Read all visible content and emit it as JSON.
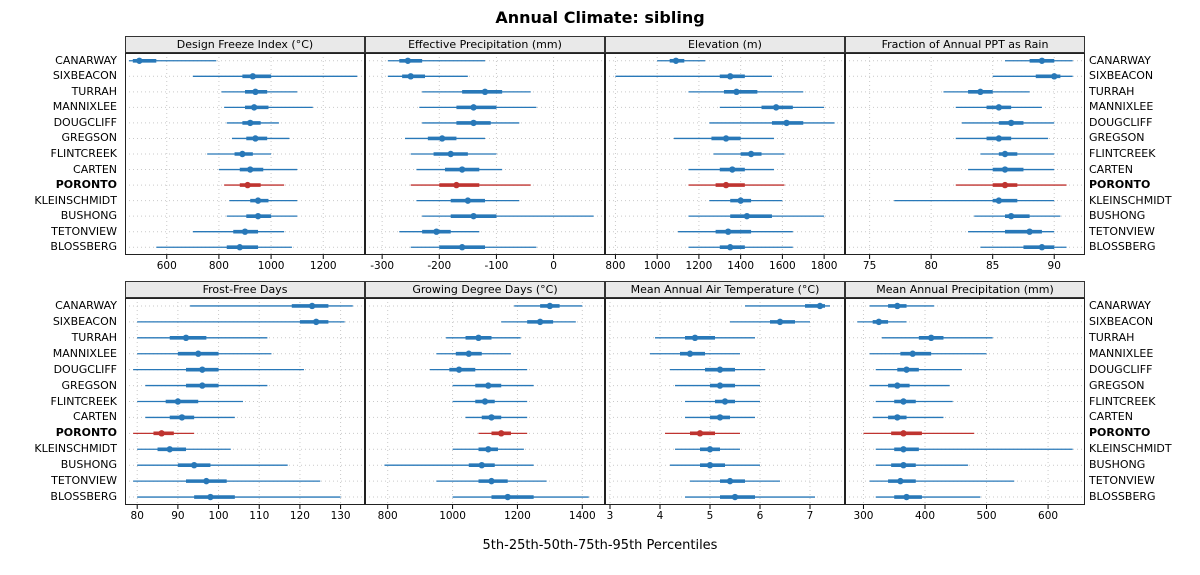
{
  "chart_data": {
    "type": "percentile-interval-dotplot",
    "title": "Annual Climate: sibling",
    "caption": "5th-25th-50th-75th-95th Percentiles",
    "legend_position": "none",
    "grid": "dotted",
    "stations": [
      "CANARWAY",
      "SIXBEACON",
      "TURRAH",
      "MANNIXLEE",
      "DOUGCLIFF",
      "GREGSON",
      "FLINTCREEK",
      "CARTEN",
      "PORONTO",
      "KLEINSCHMIDT",
      "BUSHONG",
      "TETONVIEW",
      "BLOSSBERG"
    ],
    "highlight_station": "PORONTO",
    "colors": {
      "normal": "#2878b8",
      "highlight": "#bf3430"
    },
    "percentiles": [
      5,
      25,
      50,
      75,
      95
    ],
    "panels": [
      {
        "title": "Design Freeze Index (°C)",
        "xlim": [
          440,
          1360
        ],
        "ticks": [
          600,
          800,
          1000,
          1200
        ],
        "values": [
          [
            455,
            470,
            495,
            560,
            790
          ],
          [
            700,
            890,
            930,
            1000,
            1330
          ],
          [
            810,
            900,
            940,
            985,
            1100
          ],
          [
            820,
            900,
            935,
            990,
            1160
          ],
          [
            830,
            890,
            920,
            960,
            1030
          ],
          [
            850,
            905,
            940,
            985,
            1070
          ],
          [
            755,
            860,
            890,
            930,
            1000
          ],
          [
            800,
            880,
            920,
            970,
            1100
          ],
          [
            820,
            880,
            910,
            960,
            1050
          ],
          [
            840,
            920,
            950,
            990,
            1100
          ],
          [
            830,
            905,
            950,
            1000,
            1100
          ],
          [
            700,
            855,
            900,
            950,
            1050
          ],
          [
            560,
            830,
            880,
            950,
            1080
          ]
        ]
      },
      {
        "title": "Effective Precipitation (mm)",
        "xlim": [
          -330,
          90
        ],
        "ticks": [
          -300,
          -200,
          -100,
          0
        ],
        "values": [
          [
            -290,
            -270,
            -255,
            -230,
            -120
          ],
          [
            -290,
            -265,
            -250,
            -225,
            -150
          ],
          [
            -230,
            -160,
            -120,
            -90,
            -40
          ],
          [
            -235,
            -170,
            -140,
            -100,
            -30
          ],
          [
            -230,
            -170,
            -140,
            -110,
            -60
          ],
          [
            -260,
            -220,
            -195,
            -170,
            -120
          ],
          [
            -250,
            -210,
            -180,
            -150,
            -100
          ],
          [
            -240,
            -190,
            -160,
            -130,
            -90
          ],
          [
            -250,
            -200,
            -170,
            -130,
            -40
          ],
          [
            -240,
            -180,
            -150,
            -120,
            -60
          ],
          [
            -230,
            -180,
            -140,
            -100,
            70
          ],
          [
            -270,
            -230,
            -205,
            -180,
            -130
          ],
          [
            -250,
            -200,
            -160,
            -120,
            -30
          ]
        ]
      },
      {
        "title": "Elevation (m)",
        "xlim": [
          750,
          1900
        ],
        "ticks": [
          800,
          1000,
          1200,
          1400,
          1600,
          1800
        ],
        "values": [
          [
            1000,
            1060,
            1090,
            1130,
            1230
          ],
          [
            800,
            1300,
            1350,
            1420,
            1550
          ],
          [
            1150,
            1320,
            1380,
            1480,
            1700
          ],
          [
            1300,
            1500,
            1570,
            1650,
            1800
          ],
          [
            1250,
            1550,
            1620,
            1700,
            1850
          ],
          [
            1080,
            1260,
            1330,
            1400,
            1560
          ],
          [
            1270,
            1400,
            1450,
            1500,
            1610
          ],
          [
            1150,
            1300,
            1360,
            1420,
            1560
          ],
          [
            1150,
            1280,
            1330,
            1420,
            1610
          ],
          [
            1250,
            1350,
            1400,
            1450,
            1600
          ],
          [
            1150,
            1350,
            1430,
            1550,
            1800
          ],
          [
            1100,
            1280,
            1340,
            1450,
            1650
          ],
          [
            1150,
            1300,
            1350,
            1420,
            1650
          ]
        ]
      },
      {
        "title": "Fraction of Annual PPT as Rain",
        "xlim": [
          73,
          92.5
        ],
        "ticks": [
          75,
          80,
          85,
          90
        ],
        "values": [
          [
            86,
            88,
            89,
            90,
            91.5
          ],
          [
            85,
            88.5,
            90,
            90.5,
            91.5
          ],
          [
            81,
            83,
            84,
            85,
            88
          ],
          [
            82,
            84.5,
            85.5,
            86.5,
            89
          ],
          [
            82.5,
            85.5,
            86.5,
            87.5,
            90
          ],
          [
            82,
            84.5,
            85.5,
            86.5,
            89.5
          ],
          [
            84,
            85.5,
            86,
            87,
            90
          ],
          [
            83,
            85,
            86,
            87.5,
            90
          ],
          [
            82,
            85,
            86,
            87,
            91
          ],
          [
            77,
            85,
            85.5,
            87,
            90
          ],
          [
            83.5,
            86,
            86.5,
            88,
            90.5
          ],
          [
            83,
            86,
            88,
            89,
            90
          ],
          [
            84,
            87.5,
            89,
            90,
            91
          ]
        ]
      },
      {
        "title": "Frost-Free Days",
        "xlim": [
          77,
          136
        ],
        "ticks": [
          80,
          90,
          100,
          110,
          120,
          130
        ],
        "values": [
          [
            93,
            118,
            123,
            127,
            133
          ],
          [
            80,
            120,
            124,
            127,
            131
          ],
          [
            80,
            88,
            92,
            97,
            112
          ],
          [
            80,
            90,
            95,
            100,
            113
          ],
          [
            79,
            92,
            96,
            100,
            121
          ],
          [
            82,
            92,
            96,
            100,
            112
          ],
          [
            80,
            87,
            90,
            95,
            106
          ],
          [
            82,
            88,
            91,
            94,
            104
          ],
          [
            79,
            84,
            86,
            89,
            94
          ],
          [
            80,
            85,
            88,
            92,
            103
          ],
          [
            80,
            90,
            94,
            98,
            117
          ],
          [
            79,
            92,
            97,
            102,
            125
          ],
          [
            80,
            94,
            98,
            104,
            130
          ]
        ]
      },
      {
        "title": "Growing Degree Days (°C)",
        "xlim": [
          730,
          1470
        ],
        "ticks": [
          800,
          1000,
          1200,
          1400
        ],
        "values": [
          [
            1190,
            1270,
            1300,
            1330,
            1400
          ],
          [
            1150,
            1230,
            1270,
            1310,
            1380
          ],
          [
            980,
            1040,
            1080,
            1120,
            1210
          ],
          [
            950,
            1010,
            1050,
            1090,
            1180
          ],
          [
            930,
            990,
            1020,
            1070,
            1230
          ],
          [
            1000,
            1070,
            1110,
            1150,
            1250
          ],
          [
            1000,
            1070,
            1100,
            1130,
            1230
          ],
          [
            1040,
            1090,
            1120,
            1150,
            1230
          ],
          [
            1080,
            1120,
            1150,
            1180,
            1230
          ],
          [
            1000,
            1080,
            1110,
            1140,
            1220
          ],
          [
            790,
            1050,
            1090,
            1130,
            1250
          ],
          [
            950,
            1080,
            1120,
            1170,
            1290
          ],
          [
            1000,
            1120,
            1170,
            1250,
            1420
          ]
        ]
      },
      {
        "title": "Mean Annual Air Temperature (°C)",
        "xlim": [
          2.9,
          7.7
        ],
        "ticks": [
          3,
          4,
          5,
          6,
          7
        ],
        "values": [
          [
            5.7,
            6.9,
            7.2,
            7.3,
            7.4
          ],
          [
            5.4,
            6.2,
            6.4,
            6.7,
            7.0
          ],
          [
            3.9,
            4.5,
            4.7,
            5.1,
            5.9
          ],
          [
            3.8,
            4.4,
            4.6,
            4.9,
            5.6
          ],
          [
            4.2,
            4.9,
            5.2,
            5.5,
            6.1
          ],
          [
            4.3,
            5.0,
            5.2,
            5.5,
            6.0
          ],
          [
            4.5,
            5.1,
            5.3,
            5.5,
            6.0
          ],
          [
            4.5,
            5.0,
            5.2,
            5.4,
            5.9
          ],
          [
            4.1,
            4.6,
            4.8,
            5.1,
            5.6
          ],
          [
            4.3,
            4.8,
            5.0,
            5.2,
            5.6
          ],
          [
            4.2,
            4.8,
            5.0,
            5.3,
            6.0
          ],
          [
            4.6,
            5.2,
            5.4,
            5.7,
            6.4
          ],
          [
            4.5,
            5.2,
            5.5,
            5.9,
            7.1
          ]
        ]
      },
      {
        "title": "Mean Annual Precipitation (mm)",
        "xlim": [
          270,
          660
        ],
        "ticks": [
          300,
          400,
          500,
          600
        ],
        "values": [
          [
            310,
            340,
            355,
            370,
            415
          ],
          [
            290,
            315,
            325,
            340,
            370
          ],
          [
            330,
            390,
            410,
            430,
            510
          ],
          [
            310,
            360,
            380,
            410,
            500
          ],
          [
            320,
            355,
            370,
            390,
            460
          ],
          [
            310,
            340,
            355,
            375,
            440
          ],
          [
            320,
            350,
            365,
            385,
            445
          ],
          [
            315,
            340,
            355,
            370,
            430
          ],
          [
            300,
            345,
            365,
            395,
            480
          ],
          [
            320,
            350,
            365,
            390,
            640
          ],
          [
            320,
            345,
            365,
            385,
            470
          ],
          [
            310,
            340,
            360,
            385,
            545
          ],
          [
            320,
            350,
            370,
            395,
            490
          ]
        ]
      }
    ]
  }
}
